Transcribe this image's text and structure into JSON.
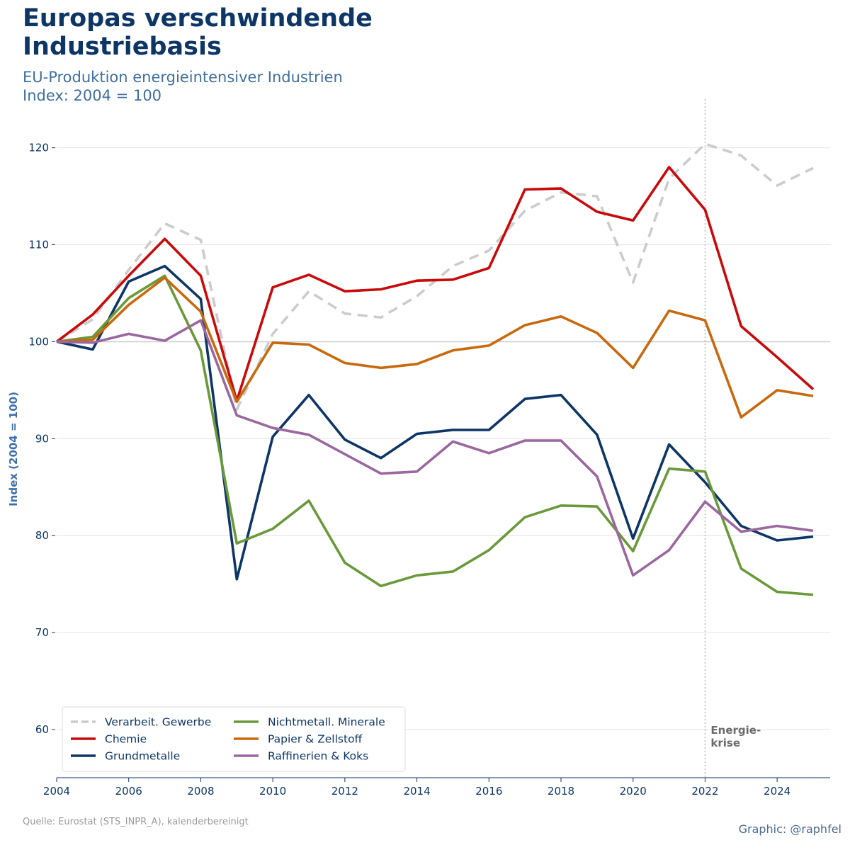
{
  "header": {
    "title_line1": "Europas verschwindende",
    "title_line2": "Industriebasis",
    "subtitle_line1": "EU-Produktion energieintensiver Industrien",
    "subtitle_line2": "Index: 2004 = 100"
  },
  "footer": {
    "source": "Quelle: Eurostat (STS_INPR_A), kalenderbereinigt",
    "credit": "Graphic: @raphfel"
  },
  "chart_data": {
    "type": "line",
    "title": "Europas verschwindende Industriebasis",
    "subtitle": "EU-Produktion energieintensiver Industrien, Index: 2004 = 100",
    "xlabel": "",
    "ylabel": "Index (2004 = 100)",
    "xlim": [
      2004,
      2025.5
    ],
    "ylim": [
      55,
      124
    ],
    "xticks": [
      2004,
      2006,
      2008,
      2010,
      2012,
      2014,
      2016,
      2018,
      2020,
      2022,
      2024
    ],
    "yticks": [
      60,
      70,
      80,
      90,
      100,
      110,
      120
    ],
    "grid": "horizontal",
    "reference_line": 100,
    "legend_position": "bottom-left",
    "x": [
      2004,
      2005,
      2006,
      2007,
      2008,
      2009,
      2010,
      2011,
      2012,
      2013,
      2014,
      2015,
      2016,
      2017,
      2018,
      2019,
      2020,
      2021,
      2022,
      2023,
      2024,
      2025
    ],
    "series": [
      {
        "name": "Verarbeit. Gewerbe",
        "color": "#cccccc",
        "dashed": true,
        "values": [
          100,
          102.3,
          107.4,
          112.2,
          110.5,
          93.0,
          100.8,
          105.2,
          102.9,
          102.5,
          104.7,
          107.8,
          109.4,
          113.5,
          115.4,
          115.0,
          106.1,
          116.8,
          120.4,
          119.2,
          116.1,
          117.9
        ]
      },
      {
        "name": "Chemie",
        "color": "#c80a0a",
        "dashed": false,
        "values": [
          100,
          102.8,
          106.8,
          110.6,
          106.8,
          93.9,
          105.6,
          106.9,
          105.2,
          105.4,
          106.3,
          106.4,
          107.6,
          115.7,
          115.8,
          113.4,
          112.5,
          118.0,
          113.6,
          101.6,
          98.4,
          95.1
        ]
      },
      {
        "name": "Grundmetalle",
        "color": "#0d3566",
        "dashed": false,
        "values": [
          100,
          99.2,
          106.2,
          107.8,
          104.4,
          75.5,
          90.2,
          94.5,
          89.9,
          88.0,
          90.5,
          90.9,
          90.9,
          94.1,
          94.5,
          90.4,
          79.7,
          89.4,
          85.5,
          81.0,
          79.5,
          79.9
        ]
      },
      {
        "name": "Nichtmetall. Minerale",
        "color": "#6a993a",
        "dashed": false,
        "values": [
          100,
          100.5,
          104.5,
          106.8,
          99.1,
          79.2,
          80.7,
          83.6,
          77.2,
          74.8,
          75.9,
          76.3,
          78.5,
          81.9,
          83.1,
          83.0,
          78.4,
          86.9,
          86.6,
          76.6,
          74.2,
          73.9
        ]
      },
      {
        "name": "Papier & Zellstoff",
        "color": "#c8690e",
        "dashed": false,
        "values": [
          100,
          100.2,
          103.8,
          106.6,
          103.1,
          93.8,
          99.9,
          99.7,
          97.8,
          97.3,
          97.7,
          99.1,
          99.6,
          101.7,
          102.6,
          100.9,
          97.3,
          103.2,
          102.2,
          92.2,
          95.0,
          94.4
        ]
      },
      {
        "name": "Raffinerien & Koks",
        "color": "#9a679e",
        "dashed": false,
        "values": [
          100,
          99.9,
          100.8,
          100.1,
          102.2,
          92.4,
          91.1,
          90.4,
          88.4,
          86.4,
          86.6,
          89.7,
          88.5,
          89.8,
          89.8,
          86.1,
          75.9,
          78.5,
          83.5,
          80.4,
          81.0,
          80.5
        ]
      }
    ],
    "annotation": {
      "x": 2022,
      "line1": "Energie-",
      "line2": "krise"
    }
  }
}
